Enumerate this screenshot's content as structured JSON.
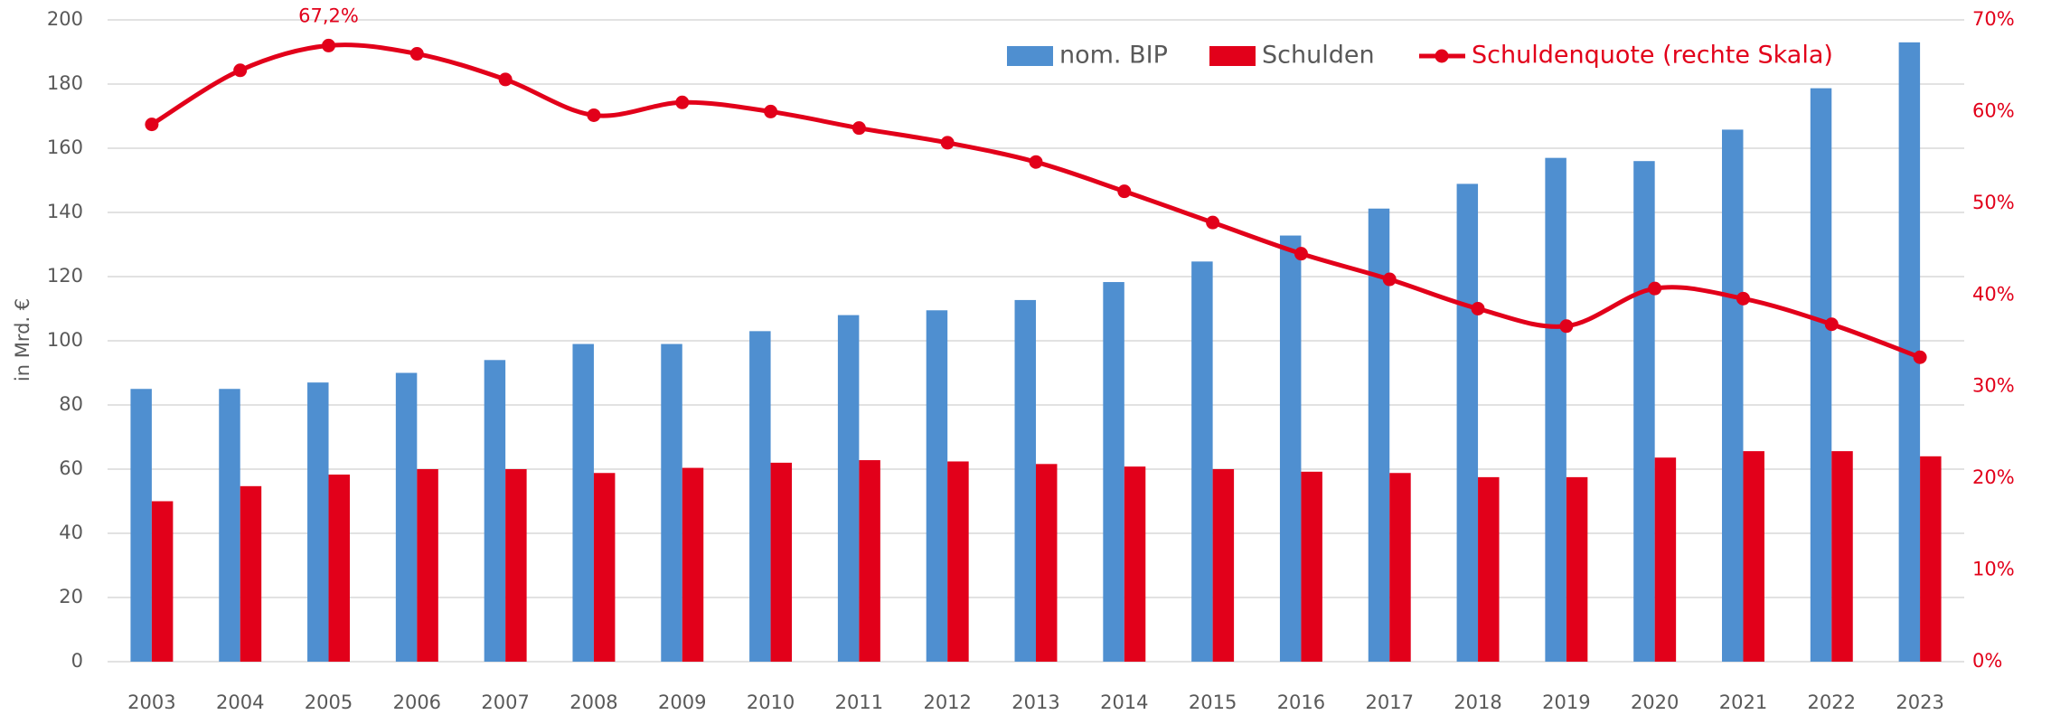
{
  "chart_data": {
    "type": "bar-line",
    "y_label": "in Mrd. €",
    "categories": [
      "2003",
      "2004",
      "2005",
      "2006",
      "2007",
      "2008",
      "2009",
      "2010",
      "2011",
      "2012",
      "2013",
      "2014",
      "2015",
      "2016",
      "2017",
      "2018",
      "2019",
      "2020",
      "2021",
      "2022",
      "2023"
    ],
    "series": [
      {
        "name": "nom. BIP",
        "type": "bar",
        "color": "#4f8fd0",
        "values": [
          85,
          85,
          87,
          90,
          94,
          99,
          99,
          103,
          108,
          109.5,
          112.7,
          118.3,
          124.7,
          132.8,
          141.2,
          148.9,
          157,
          156,
          165.8,
          178.7,
          193
        ]
      },
      {
        "name": "Schulden",
        "type": "bar",
        "color": "#e2001a",
        "values": [
          50,
          54.7,
          58.3,
          60,
          60,
          58.8,
          60.4,
          62,
          62.8,
          62.4,
          61.6,
          60.8,
          60,
          59.2,
          58.8,
          57.5,
          57.5,
          63.6,
          65.6,
          65.6,
          64
        ]
      },
      {
        "name": "Schuldenquote (rechte Skala)",
        "type": "line",
        "axis": "y2",
        "color": "#e2001a",
        "values": [
          58.6,
          64.5,
          67.2,
          66.3,
          63.5,
          59.6,
          61,
          60,
          58.2,
          56.6,
          54.5,
          51.3,
          47.9,
          44.5,
          41.7,
          38.5,
          36.6,
          40.7,
          39.6,
          36.8,
          33.2
        ],
        "value_labels": [
          null,
          null,
          "67,2%",
          null,
          null,
          null,
          null,
          null,
          null,
          null,
          null,
          null,
          null,
          null,
          null,
          null,
          null,
          null,
          null,
          null,
          null
        ]
      }
    ],
    "ylim": [
      0,
      200
    ],
    "yticks": [
      0,
      20,
      40,
      60,
      80,
      100,
      120,
      140,
      160,
      180,
      200
    ],
    "y2lim": [
      0,
      70
    ],
    "y2ticks": [
      {
        "value": 0,
        "label": "0%"
      },
      {
        "value": 10,
        "label": "10%"
      },
      {
        "value": 20,
        "label": "20%"
      },
      {
        "value": 30,
        "label": "30%"
      },
      {
        "value": 40,
        "label": "40%"
      },
      {
        "value": 50,
        "label": "50%"
      },
      {
        "value": 60,
        "label": "60%"
      },
      {
        "value": 70,
        "label": "70%"
      }
    ],
    "grid": true,
    "legend": "top-right"
  }
}
